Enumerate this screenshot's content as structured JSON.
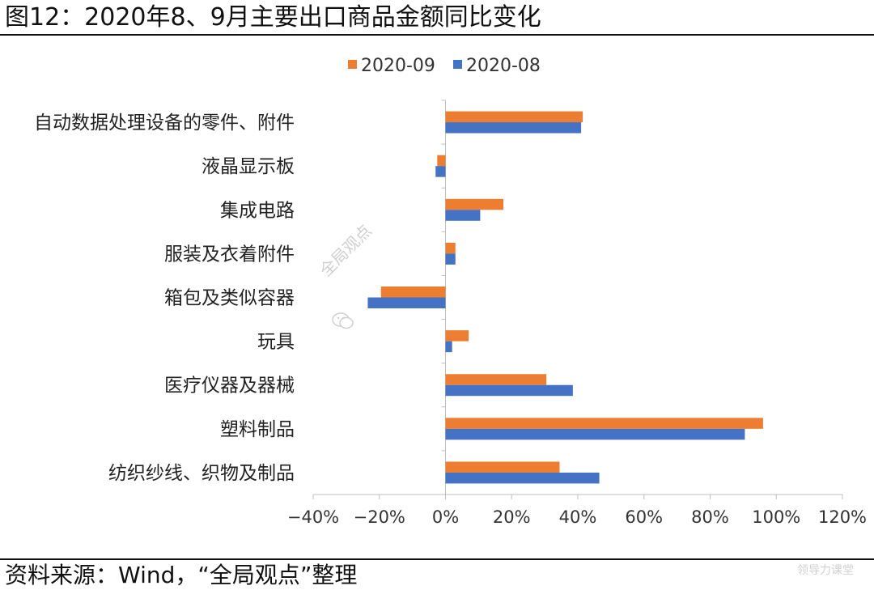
{
  "header": {
    "title": "图12：2020年8、9月主要出口商品金额同比变化"
  },
  "footer": {
    "source": "资料来源：Wind，“全局观点”整理",
    "corner_mark": "领导力课堂"
  },
  "watermark": {
    "text": "全局观点"
  },
  "colors": {
    "series_2020_09": "#ED7D31",
    "series_2020_08": "#4472C4",
    "axis": "#bfbfbf"
  },
  "chart_data": {
    "type": "bar",
    "orientation": "horizontal",
    "title": "",
    "xlabel": "",
    "ylabel": "",
    "legend_position": "top-center",
    "grid": false,
    "categories": [
      "自动数据处理设备的零件、附件",
      "液晶显示板",
      "集成电路",
      "服装及衣着附件",
      "箱包及类似容器",
      "玩具",
      "医疗仪器及器械",
      "塑料制品",
      "纺织纱线、织物及制品"
    ],
    "series": [
      {
        "name": "2020-09",
        "values": [
          41.5,
          -2.5,
          17.5,
          3,
          -19.5,
          7,
          30.5,
          96,
          34.5
        ]
      },
      {
        "name": "2020-08",
        "values": [
          41,
          -3,
          10.5,
          3,
          -23.5,
          2,
          38.5,
          90.5,
          46.5
        ]
      }
    ],
    "xlim": [
      -40,
      120
    ],
    "xticks": [
      -40,
      -20,
      0,
      20,
      40,
      60,
      80,
      100,
      120
    ],
    "xtick_labels": [
      "−40%",
      "−20%",
      "0%",
      "20%",
      "40%",
      "60%",
      "80%",
      "100%",
      "120%"
    ]
  }
}
